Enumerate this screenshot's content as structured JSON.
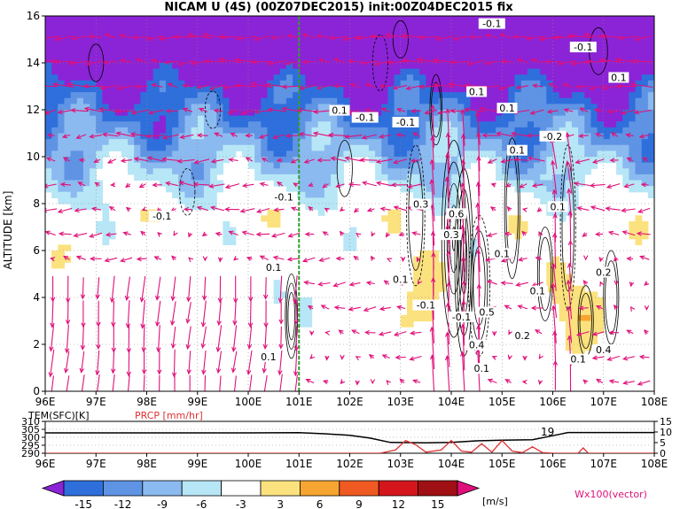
{
  "title": "NICAM  U  (4S)  (00Z07DEC2015)  init:00Z04DEC2015  fix",
  "colors": {
    "neg15": "#8b24d6",
    "neg12": "#2f6fdc",
    "neg9": "#5f93e4",
    "neg6": "#8bbaf0",
    "neg3": "#b7e6f6",
    "zero": "#ffffff",
    "pos3": "#fbe27f",
    "pos6": "#f7a531",
    "pos9": "#ef5a22",
    "pos12": "#d4161c",
    "pos15": "#a00f13",
    "vector": "#e0107a",
    "marker": "#2ea02e",
    "precip": "#e03030"
  },
  "chart_data": [
    {
      "type": "heatmap",
      "panel": "main",
      "ylabel": "ALTITUDE  [km]",
      "xlim": [
        96,
        108
      ],
      "ylim": [
        0,
        16
      ],
      "xticks": [
        "96E",
        "97E",
        "98E",
        "99E",
        "100E",
        "101E",
        "102E",
        "103E",
        "104E",
        "105E",
        "106E",
        "107E",
        "108E"
      ],
      "yticks": [
        "0",
        "2",
        "4",
        "6",
        "8",
        "10",
        "12",
        "14",
        "16"
      ],
      "grid": true,
      "marker_longitude": 101.0,
      "contour_labels": [
        {
          "text": "-0.1",
          "lon": 104.8,
          "alt": 15.6
        },
        {
          "text": "-0.1",
          "lon": 106.6,
          "alt": 14.6
        },
        {
          "text": "0.1",
          "lon": 107.3,
          "alt": 13.3
        },
        {
          "text": "0.1",
          "lon": 104.5,
          "alt": 12.7
        },
        {
          "text": "0.1",
          "lon": 105.1,
          "alt": 12.0
        },
        {
          "text": "0.1",
          "lon": 101.8,
          "alt": 11.9
        },
        {
          "text": "-0.1",
          "lon": 102.3,
          "alt": 11.6
        },
        {
          "text": "-0.1",
          "lon": 103.1,
          "alt": 11.4
        },
        {
          "text": "-0.2",
          "lon": 106.0,
          "alt": 10.8
        },
        {
          "text": "0.1",
          "lon": 105.3,
          "alt": 10.2
        },
        {
          "text": "-0.1",
          "lon": 100.7,
          "alt": 8.2
        },
        {
          "text": "0.3",
          "lon": 103.4,
          "alt": 7.9
        },
        {
          "text": "0.1",
          "lon": 106.1,
          "alt": 7.8
        },
        {
          "text": "-0.1",
          "lon": 98.3,
          "alt": 7.4
        },
        {
          "text": "0.6",
          "lon": 104.1,
          "alt": 7.5
        },
        {
          "text": "0.3",
          "lon": 104.0,
          "alt": 6.6
        },
        {
          "text": "0.1",
          "lon": 105.0,
          "alt": 5.8
        },
        {
          "text": "0.1",
          "lon": 100.5,
          "alt": 5.2
        },
        {
          "text": "0.2",
          "lon": 107.0,
          "alt": 5.0
        },
        {
          "text": "0.1",
          "lon": 103.0,
          "alt": 4.7
        },
        {
          "text": "0.1",
          "lon": 105.7,
          "alt": 4.2
        },
        {
          "text": "-0.1",
          "lon": 103.5,
          "alt": 3.6
        },
        {
          "text": "0.5",
          "lon": 104.7,
          "alt": 3.3
        },
        {
          "text": "-0.1",
          "lon": 104.2,
          "alt": 3.1
        },
        {
          "text": "0.2",
          "lon": 105.4,
          "alt": 2.3
        },
        {
          "text": "0.4",
          "lon": 104.5,
          "alt": 1.9
        },
        {
          "text": "0.1",
          "lon": 100.4,
          "alt": 1.4
        },
        {
          "text": "0.1",
          "lon": 106.5,
          "alt": 1.3
        },
        {
          "text": "0.1",
          "lon": 104.6,
          "alt": 0.9
        },
        {
          "text": "0.4",
          "lon": 107.0,
          "alt": 1.7
        }
      ]
    },
    {
      "type": "line",
      "panel": "surface",
      "left_label": "TEM(SFC)[K]",
      "right_label": "PRCP [mm/hr]",
      "xlim": [
        96,
        108
      ],
      "ylim_left": [
        290,
        310
      ],
      "ylim_right": [
        0,
        15
      ],
      "yticks_left": [
        "290",
        "295",
        "300",
        "305",
        "310"
      ],
      "yticks_right": [
        "0",
        "5",
        "10",
        "15"
      ],
      "xticks": [
        "96E",
        "97E",
        "98E",
        "99E",
        "100E",
        "101E",
        "102E",
        "103E",
        "104E",
        "105E",
        "106E",
        "107E",
        "108E"
      ],
      "annotation": "19",
      "series": [
        {
          "name": "TEM(SFC)[K]",
          "x": [
            96,
            98,
            100,
            101,
            101.5,
            102,
            102.4,
            102.8,
            103.5,
            104,
            104.5,
            105,
            105.6,
            106,
            106.3,
            107,
            108
          ],
          "values": [
            302.8,
            302.8,
            302.8,
            302.9,
            302.2,
            301.3,
            299.5,
            296.8,
            296.5,
            296.8,
            297.8,
            298.2,
            298.5,
            301.0,
            303.0,
            303.0,
            303.0
          ]
        },
        {
          "name": "PRCP [mm/hr]",
          "x": [
            96,
            102.6,
            102.9,
            103.1,
            103.3,
            103.5,
            103.8,
            104,
            104.2,
            104.4,
            104.6,
            104.8,
            105.0,
            105.2,
            105.4,
            105.6,
            105.8,
            106.0,
            106.5,
            106.6,
            106.7,
            107,
            108
          ],
          "values": [
            0,
            0,
            1.5,
            6.0,
            4.0,
            0.5,
            1.5,
            6.0,
            1.0,
            0.5,
            4.5,
            0.5,
            6.0,
            1.0,
            0.3,
            3.0,
            0.3,
            0,
            0,
            2.5,
            0,
            0,
            0
          ]
        }
      ]
    }
  ],
  "colorbar": {
    "labels": [
      "-15",
      "-12",
      "-9",
      "-6",
      "-3",
      "3",
      "6",
      "9",
      "12",
      "15"
    ],
    "unit": "[m/s]",
    "vector_label": "Wx100(vector)"
  }
}
